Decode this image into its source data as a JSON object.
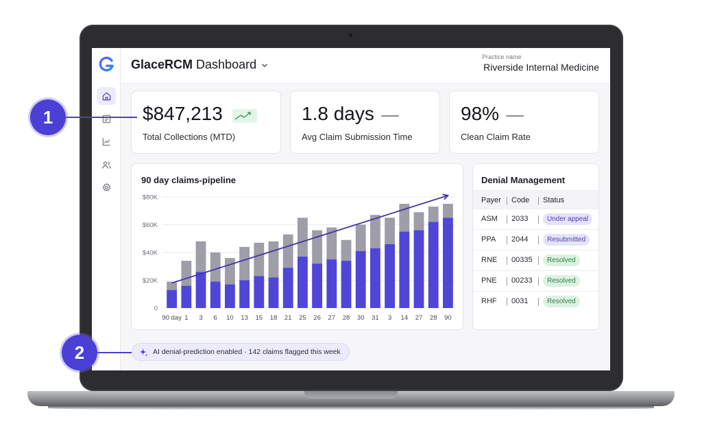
{
  "header": {
    "brand": "GlaceRCM",
    "title_rest": "Dashboard",
    "practice_label": "Practice name",
    "practice_name": "Riverside Internal Medicine"
  },
  "sidebar": {
    "items": [
      {
        "icon": "home-icon",
        "active": true
      },
      {
        "icon": "document-icon",
        "active": false
      },
      {
        "icon": "line-chart-icon",
        "active": false
      },
      {
        "icon": "users-icon",
        "active": false
      },
      {
        "icon": "gear-icon",
        "active": false
      }
    ]
  },
  "kpis": [
    {
      "value": "$847,213",
      "label": "Total Collections (MTD)",
      "trend": "up"
    },
    {
      "value": "1.8 days",
      "label": "Avg Claim Submission Time",
      "trend": "flat"
    },
    {
      "value": "98%",
      "label": "Clean Claim Rate",
      "trend": "flat"
    }
  ],
  "pipeline": {
    "title": "90 day claims-pipeline",
    "y_ticks": [
      "$80K",
      "$60K",
      "$40K",
      "$20K",
      "0"
    ],
    "x_labels": [
      "90 day",
      "1",
      "3",
      "6",
      "10",
      "13",
      "15",
      "18",
      "21",
      "25",
      "26",
      "27",
      "28",
      "30",
      "31",
      "3",
      "14",
      "27",
      "28",
      "90"
    ],
    "colors": {
      "top": "#9d9ea8",
      "bottom": "#4f46d8",
      "trend": "#3f36a8"
    }
  },
  "chart_data": {
    "type": "bar",
    "categories": [
      "90 day",
      "1",
      "3",
      "6",
      "10",
      "13",
      "15",
      "18",
      "21",
      "25",
      "26",
      "27",
      "28",
      "30",
      "31",
      "3",
      "14",
      "27",
      "28",
      "90"
    ],
    "series": [
      {
        "values": [
          13000,
          16000,
          26000,
          19000,
          17000,
          20000,
          23000,
          22000,
          29000,
          37000,
          32000,
          35000,
          34000,
          41000,
          43000,
          46000,
          55000,
          56000,
          62000,
          65000
        ]
      },
      {
        "values": [
          19000,
          34000,
          48000,
          40000,
          36000,
          44000,
          47000,
          48000,
          53000,
          65000,
          56000,
          58000,
          49000,
          60000,
          67000,
          65000,
          75000,
          69000,
          73000,
          75000
        ]
      }
    ],
    "stacked_total": true,
    "title": "90 day claims-pipeline",
    "ylim": [
      0,
      80000
    ],
    "trend_line": {
      "from": 18000,
      "to": 81000
    }
  },
  "denials": {
    "title": "Denial Management",
    "headers": [
      "Payer",
      "Code",
      "Status"
    ],
    "rows": [
      {
        "payer": "ASM",
        "code": "2033",
        "status": "Under appeal",
        "tone": "purple"
      },
      {
        "payer": "PPA",
        "code": "2044",
        "status": "Resubmitted",
        "tone": "purple"
      },
      {
        "payer": "RNE",
        "code": "00335",
        "status": "Resolved",
        "tone": "green"
      },
      {
        "payer": "PNE",
        "code": "00233",
        "status": "Resolved",
        "tone": "green"
      },
      {
        "payer": "RHF",
        "code": "0031",
        "status": "Resolved",
        "tone": "green"
      }
    ]
  },
  "ai_banner": {
    "icon": "sparkle-icon",
    "text": "AI denial-prediction enabled · 142 claims flagged this week"
  },
  "callouts": [
    "1",
    "2"
  ]
}
